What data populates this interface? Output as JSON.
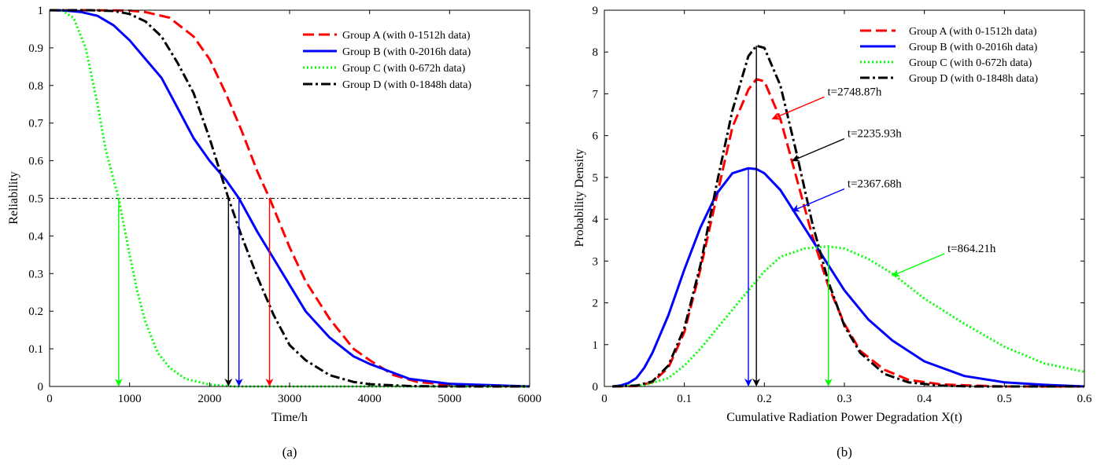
{
  "chart_data": [
    {
      "type": "line",
      "caption": "(a)",
      "xlabel": "Time/h",
      "ylabel": "Reliability",
      "xlim": [
        0,
        6000
      ],
      "ylim": [
        0,
        1
      ],
      "xticks": [
        0,
        1000,
        2000,
        3000,
        4000,
        5000,
        6000
      ],
      "yticks": [
        0,
        0.1,
        0.2,
        0.3,
        0.4,
        0.5,
        0.6,
        0.7,
        0.8,
        0.9,
        1
      ],
      "grid": false,
      "legend_position": "top-right",
      "reference_line": {
        "y": 0.5,
        "style": "dash-dot"
      },
      "series": [
        {
          "name": "Group A (with 0-1512h data)",
          "color": "#ff0000",
          "style": "dashed",
          "x": [
            0,
            500,
            1000,
            1200,
            1500,
            1800,
            2000,
            2200,
            2400,
            2600,
            2750,
            3000,
            3200,
            3500,
            3800,
            4000,
            4300,
            4600,
            5000,
            6000
          ],
          "y": [
            1,
            1,
            0.999,
            0.995,
            0.98,
            0.93,
            0.87,
            0.78,
            0.68,
            0.57,
            0.5,
            0.37,
            0.28,
            0.18,
            0.1,
            0.07,
            0.03,
            0.012,
            0.004,
            0
          ]
        },
        {
          "name": "Group B (with 0-2016h data)",
          "color": "#0000ff",
          "style": "solid",
          "x": [
            0,
            200,
            400,
            600,
            800,
            1000,
            1200,
            1400,
            1600,
            1800,
            2000,
            2200,
            2368,
            2600,
            2800,
            3000,
            3200,
            3500,
            3800,
            4000,
            4500,
            5000,
            6000
          ],
          "y": [
            1,
            0.999,
            0.995,
            0.985,
            0.96,
            0.92,
            0.87,
            0.82,
            0.74,
            0.66,
            0.6,
            0.55,
            0.5,
            0.41,
            0.34,
            0.27,
            0.2,
            0.13,
            0.08,
            0.06,
            0.02,
            0.007,
            0
          ]
        },
        {
          "name": "Group C (with 0-672h data)",
          "color": "#00ff00",
          "style": "dotted",
          "x": [
            150,
            300,
            450,
            600,
            700,
            800,
            864,
            1000,
            1100,
            1200,
            1350,
            1500,
            1700,
            2000,
            2300,
            6000
          ],
          "y": [
            1,
            0.98,
            0.9,
            0.75,
            0.63,
            0.55,
            0.5,
            0.35,
            0.25,
            0.17,
            0.09,
            0.05,
            0.02,
            0.005,
            0,
            0
          ]
        },
        {
          "name": "Group D (with 0-1848h data)",
          "color": "#000000",
          "style": "dash-dot",
          "x": [
            0,
            500,
            800,
            1000,
            1200,
            1400,
            1600,
            1800,
            2000,
            2236,
            2400,
            2600,
            2800,
            3000,
            3200,
            3500,
            3800,
            4000,
            4500,
            5000,
            6000
          ],
          "y": [
            1,
            1,
            0.998,
            0.99,
            0.97,
            0.93,
            0.86,
            0.78,
            0.66,
            0.5,
            0.4,
            0.29,
            0.19,
            0.11,
            0.07,
            0.03,
            0.012,
            0.006,
            0.001,
            0,
            0
          ]
        }
      ],
      "markers": [
        {
          "x": 864.21,
          "color": "#00ff00"
        },
        {
          "x": 2235.93,
          "color": "#000000"
        },
        {
          "x": 2367.68,
          "color": "#0000ff"
        },
        {
          "x": 2748.87,
          "color": "#ff0000"
        }
      ]
    },
    {
      "type": "line",
      "caption": "(b)",
      "xlabel": "Cumulative Radiation Power Degradation X(t)",
      "ylabel": "Probability Density",
      "xlim": [
        0,
        0.6
      ],
      "ylim": [
        0,
        9
      ],
      "xticks": [
        0,
        0.1,
        0.2,
        0.3,
        0.4,
        0.5,
        0.6
      ],
      "yticks": [
        0,
        1,
        2,
        3,
        4,
        5,
        6,
        7,
        8,
        9
      ],
      "grid": false,
      "legend_position": "top-right",
      "series": [
        {
          "name": "Group A (with 0-1512h data)",
          "color": "#ff0000",
          "style": "dashed",
          "x": [
            0.01,
            0.04,
            0.06,
            0.08,
            0.1,
            0.12,
            0.14,
            0.16,
            0.18,
            0.19,
            0.2,
            0.22,
            0.24,
            0.26,
            0.28,
            0.3,
            0.32,
            0.35,
            0.38,
            0.42,
            0.46,
            0.5,
            0.6
          ],
          "y": [
            0,
            0.01,
            0.1,
            0.45,
            1.3,
            2.8,
            4.5,
            6.2,
            7.1,
            7.35,
            7.3,
            6.4,
            5.0,
            3.6,
            2.4,
            1.5,
            0.85,
            0.4,
            0.16,
            0.05,
            0.02,
            0,
            0
          ]
        },
        {
          "name": "Group B (with 0-2016h data)",
          "color": "#0000ff",
          "style": "solid",
          "x": [
            0.01,
            0.02,
            0.03,
            0.04,
            0.05,
            0.06,
            0.08,
            0.1,
            0.12,
            0.14,
            0.16,
            0.18,
            0.19,
            0.2,
            0.22,
            0.24,
            0.26,
            0.28,
            0.3,
            0.33,
            0.36,
            0.4,
            0.45,
            0.5,
            0.55,
            0.6
          ],
          "y": [
            0,
            0.02,
            0.08,
            0.2,
            0.45,
            0.8,
            1.7,
            2.8,
            3.8,
            4.6,
            5.1,
            5.22,
            5.2,
            5.1,
            4.7,
            4.1,
            3.5,
            2.9,
            2.3,
            1.6,
            1.1,
            0.6,
            0.25,
            0.1,
            0.04,
            0
          ]
        },
        {
          "name": "Group C (with 0-672h data)",
          "color": "#00ff00",
          "style": "dotted",
          "x": [
            0.01,
            0.05,
            0.08,
            0.1,
            0.12,
            0.15,
            0.18,
            0.2,
            0.22,
            0.25,
            0.28,
            0.3,
            0.33,
            0.36,
            0.4,
            0.45,
            0.5,
            0.55,
            0.6
          ],
          "y": [
            0,
            0.03,
            0.2,
            0.5,
            0.9,
            1.6,
            2.3,
            2.75,
            3.1,
            3.3,
            3.35,
            3.3,
            3.05,
            2.7,
            2.1,
            1.5,
            0.95,
            0.55,
            0.35
          ]
        },
        {
          "name": "Group D (with 0-1848h data)",
          "color": "#000000",
          "style": "dash-dot",
          "x": [
            0.01,
            0.04,
            0.06,
            0.08,
            0.1,
            0.12,
            0.14,
            0.16,
            0.18,
            0.19,
            0.2,
            0.22,
            0.24,
            0.26,
            0.28,
            0.3,
            0.32,
            0.35,
            0.38,
            0.42,
            0.46,
            0.5,
            0.6
          ],
          "y": [
            0,
            0.02,
            0.12,
            0.5,
            1.4,
            2.9,
            4.8,
            6.6,
            7.9,
            8.15,
            8.1,
            7.2,
            5.6,
            3.9,
            2.5,
            1.45,
            0.8,
            0.3,
            0.1,
            0.02,
            0,
            0,
            0
          ]
        }
      ],
      "markers": [
        {
          "x": 0.18,
          "color": "#0000ff"
        },
        {
          "x": 0.19,
          "color": "#000000"
        },
        {
          "x": 0.28,
          "color": "#00ff00"
        }
      ],
      "annotations": [
        {
          "text": "t=2748.87h",
          "color": "#ff0000",
          "x": 0.21,
          "y": 6.4
        },
        {
          "text": "t=2235.93h",
          "color": "#000000",
          "x": 0.235,
          "y": 5.4
        },
        {
          "text": "t=2367.68h",
          "color": "#0000ff",
          "x": 0.235,
          "y": 4.2
        },
        {
          "text": "t=864.21h",
          "color": "#00ff00",
          "x": 0.36,
          "y": 2.65
        }
      ]
    }
  ]
}
